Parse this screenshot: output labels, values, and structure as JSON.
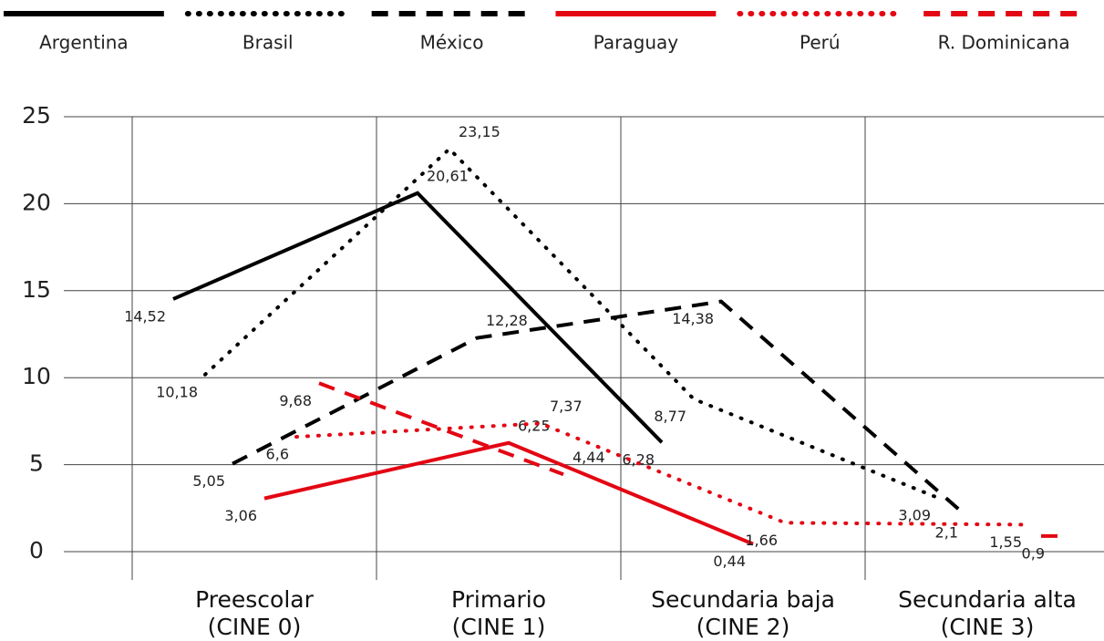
{
  "chart_data": {
    "type": "line",
    "categories": [
      "Preescolar\n(CINE 0)",
      "Primario\n(CINE 1)",
      "Secundaria baja\n(CINE 2)",
      "Secundaria alta\n(CINE 3)"
    ],
    "series": [
      {
        "name": "Argentina",
        "color": "#000000",
        "style": "solid",
        "values": [
          14.52,
          20.61,
          6.28,
          null
        ],
        "value_labels": [
          "14,52",
          "20,61",
          "6,28",
          null
        ]
      },
      {
        "name": "Brasil",
        "color": "#000000",
        "style": "dotted",
        "values": [
          10.18,
          23.15,
          8.77,
          3.09
        ],
        "value_labels": [
          "10,18",
          "23,15",
          "8,77",
          "3,09"
        ]
      },
      {
        "name": "México",
        "color": "#000000",
        "style": "dashed",
        "values": [
          5.05,
          12.28,
          14.38,
          2.1
        ],
        "value_labels": [
          "5,05",
          "12,28",
          "14,38",
          "2,1"
        ]
      },
      {
        "name": "Paraguay",
        "color": "#e30613",
        "style": "solid",
        "values": [
          3.06,
          6.25,
          0.44,
          null
        ],
        "value_labels": [
          "3,06",
          "6,25",
          "0,44",
          null
        ]
      },
      {
        "name": "Perú",
        "color": "#e30613",
        "style": "dotted",
        "values": [
          6.6,
          7.37,
          1.66,
          1.55
        ],
        "value_labels": [
          "6,6",
          "7,37",
          "1,66",
          "1,55"
        ]
      },
      {
        "name": "R. Dominicana",
        "color": "#e30613",
        "style": "dashed",
        "values": [
          9.68,
          4.44,
          null,
          0.9
        ],
        "value_labels": [
          "9,68",
          "4,44",
          null,
          "0,9"
        ]
      }
    ],
    "ylim": [
      0,
      25
    ],
    "yticks": [
      0,
      5,
      10,
      15,
      20,
      25
    ],
    "grid": true,
    "legend": "top"
  }
}
